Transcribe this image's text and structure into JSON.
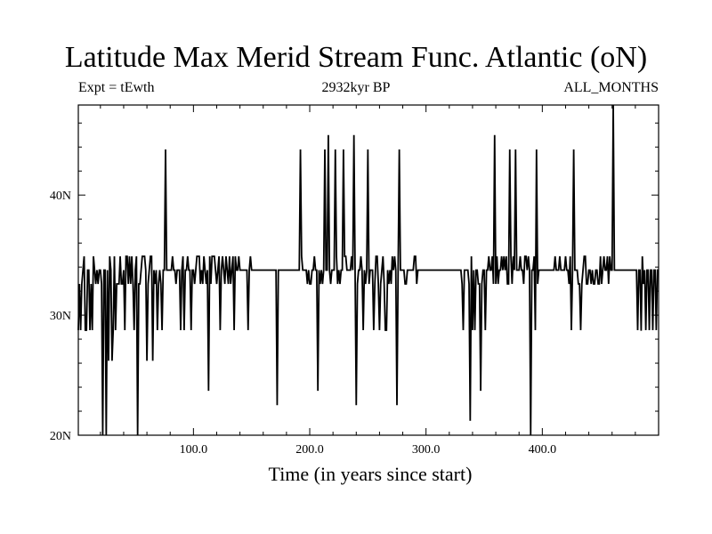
{
  "header": {
    "title": "Latitude Max Merid Stream Func. Atlantic (oN)",
    "left": "Expt = tEwth",
    "center": "2932kyr BP",
    "right": "ALL_MONTHS"
  },
  "chart_data": {
    "type": "line",
    "title": "Latitude Max Merid Stream Func. Atlantic (oN)",
    "xlabel": "Time (in years since start)",
    "ylabel": "",
    "xlim": [
      1,
      500
    ],
    "ylim": [
      20,
      47.5
    ],
    "x_ticks": [
      100,
      200,
      300,
      400
    ],
    "x_tick_labels": [
      "100.0",
      "200.0",
      "300.0",
      "400.0"
    ],
    "y_ticks": [
      20,
      30,
      40
    ],
    "y_tick_labels": [
      "20N",
      "30N",
      "40N"
    ],
    "grid": false,
    "baseline_value": 33.75,
    "upper_level": 34.9,
    "lower_level": 32.6,
    "dip_level": 28.75,
    "series": [
      {
        "spikes": [
          {
            "x": 76,
            "y": 43.8
          },
          {
            "x": 192,
            "y": 43.8
          },
          {
            "x": 213,
            "y": 43.8
          },
          {
            "x": 216,
            "y": 45.0
          },
          {
            "x": 222,
            "y": 43.8
          },
          {
            "x": 229,
            "y": 43.8
          },
          {
            "x": 238,
            "y": 45.0
          },
          {
            "x": 250,
            "y": 43.8
          },
          {
            "x": 277,
            "y": 43.8
          },
          {
            "x": 359,
            "y": 45.0
          },
          {
            "x": 372,
            "y": 43.8
          },
          {
            "x": 377,
            "y": 43.8
          },
          {
            "x": 395,
            "y": 43.8
          },
          {
            "x": 427,
            "y": 43.8
          },
          {
            "x": 461,
            "y": 47.5
          }
        ],
        "deep_dips": [
          {
            "x": 22,
            "y": 20.0
          },
          {
            "x": 25,
            "y": 20.0
          },
          {
            "x": 27,
            "y": 26.2
          },
          {
            "x": 30,
            "y": 26.2
          },
          {
            "x": 52,
            "y": 20.0
          },
          {
            "x": 60,
            "y": 26.2
          },
          {
            "x": 65,
            "y": 26.2
          },
          {
            "x": 113,
            "y": 23.7
          },
          {
            "x": 172,
            "y": 22.5
          },
          {
            "x": 207,
            "y": 23.7
          },
          {
            "x": 240,
            "y": 22.5
          },
          {
            "x": 275,
            "y": 22.5
          },
          {
            "x": 338,
            "y": 21.2
          },
          {
            "x": 347,
            "y": 23.7
          },
          {
            "x": 390,
            "y": 20.0
          },
          {
            "x": 485,
            "y": 28.7
          }
        ]
      }
    ]
  }
}
